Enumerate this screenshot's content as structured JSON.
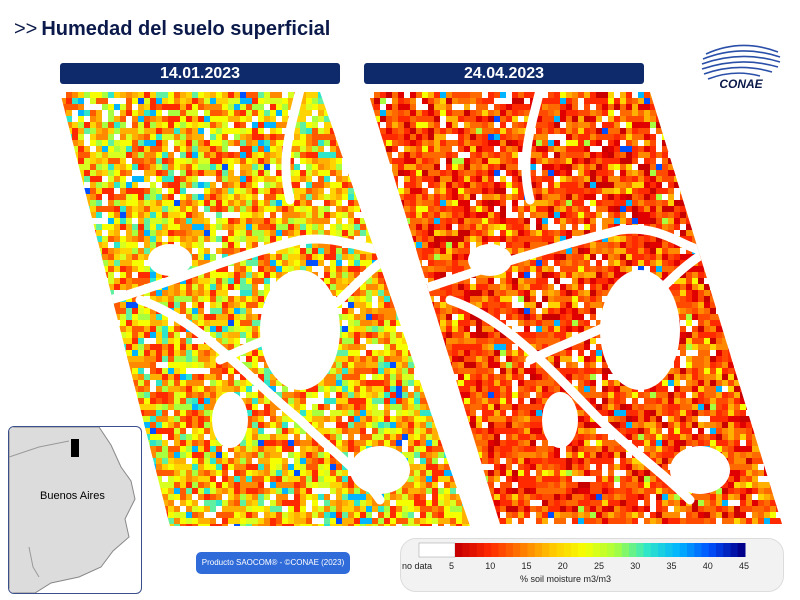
{
  "header": {
    "prefix": ">>",
    "title": "Humedad del suelo superficial"
  },
  "panels": [
    {
      "date": "14.01.2023"
    },
    {
      "date": "24.04.2023"
    }
  ],
  "logo": {
    "text": "CONAE",
    "icon": "conae-logo-icon"
  },
  "inset": {
    "region_label": "Buenos Aires"
  },
  "product": {
    "label": "Producto SAOCOM® - ©CONAE (2023)"
  },
  "legend": {
    "nodata_label": "no data",
    "unit_label": "% soil moisture m3/m3",
    "ticks": [
      "5",
      "10",
      "15",
      "20",
      "25",
      "30",
      "35",
      "40",
      "45"
    ],
    "colors": [
      "#c80000",
      "#ff2a00",
      "#ff7a00",
      "#ffc800",
      "#f6ff00",
      "#a8ff40",
      "#30e6c8",
      "#00b4ff",
      "#0050ff",
      "#00008c"
    ]
  }
}
